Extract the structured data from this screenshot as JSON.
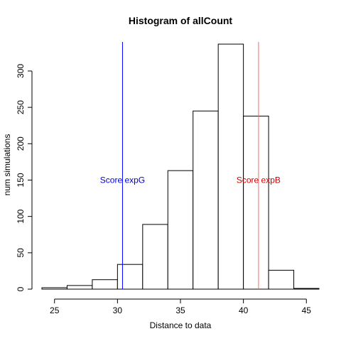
{
  "chart_data": {
    "type": "bar",
    "title": "Histogram of allCount",
    "xlabel": "Distance to data",
    "ylabel": "num simulations",
    "xlim": [
      24,
      46
    ],
    "ylim": [
      0,
      340
    ],
    "x_ticks": [
      25,
      30,
      35,
      40,
      45
    ],
    "y_ticks": [
      0,
      50,
      100,
      150,
      200,
      250,
      300
    ],
    "bin_edges": [
      24,
      26,
      28,
      30,
      32,
      34,
      36,
      38,
      40,
      42,
      44,
      46
    ],
    "values": [
      2,
      5,
      13,
      34,
      89,
      163,
      245,
      337,
      238,
      26,
      1
    ],
    "annotations": [
      {
        "label": "Score expG",
        "x": 30.4,
        "text_y": 150,
        "color": "#0000cc",
        "line_color": "#0000ff"
      },
      {
        "label": "Score expB",
        "x": 41.2,
        "text_y": 150,
        "color": "#cc0000",
        "line_color": "#ff6666"
      }
    ]
  }
}
